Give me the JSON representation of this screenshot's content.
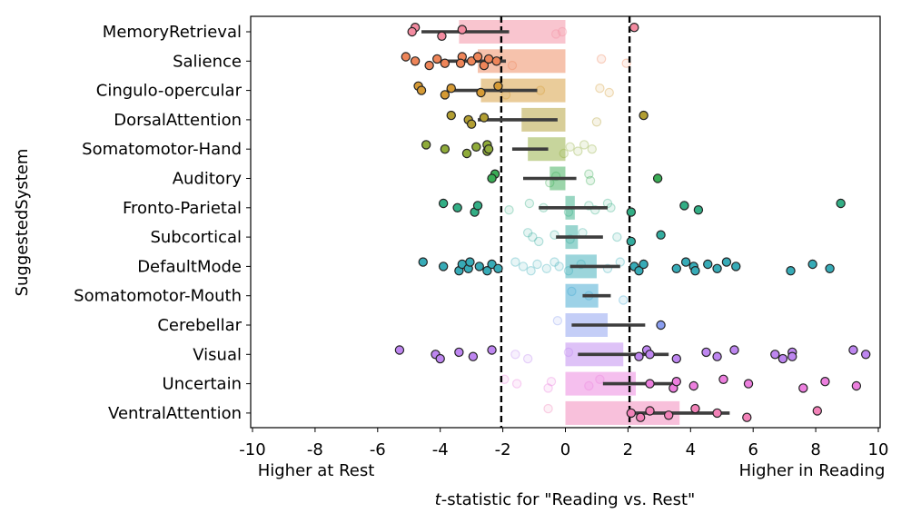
{
  "chart_data": {
    "type": "bar",
    "ylabel": "SuggestedSystem",
    "xlabel_prefix": "t",
    "xlabel_rest": "-statistic for \"Reading vs. Rest\"",
    "left_note": "Higher at Rest",
    "right_note": "Higher in Reading",
    "xlim": [
      -10,
      10
    ],
    "xticks": [
      -10,
      -8,
      -6,
      -4,
      -2,
      0,
      2,
      4,
      6,
      8,
      10
    ],
    "xtick_labels": [
      "-10",
      "-8",
      "-6",
      "-4",
      "-2",
      "0",
      "2",
      "4",
      "6",
      "8",
      "10"
    ],
    "thresholds": [
      -2.05,
      2.05
    ],
    "categories": [
      "MemoryRetrieval",
      "Salience",
      "Cingulo-opercular",
      "DorsalAttention",
      "Somatomotor-Hand",
      "Auditory",
      "Fronto-Parietal",
      "Subcortical",
      "DefaultMode",
      "Somatomotor-Mouth",
      "Cerebellar",
      "Visual",
      "Uncertain",
      "VentralAttention"
    ],
    "colors": [
      "#f38ba0",
      "#ee8559",
      "#d59a35",
      "#b29e32",
      "#8fab3a",
      "#3aac55",
      "#33ae85",
      "#33ac9f",
      "#37abb7",
      "#3ba5d0",
      "#8a9ef0",
      "#be86f0",
      "#ec7fde",
      "#f282b8"
    ],
    "means": [
      -3.4,
      -2.8,
      -2.7,
      -1.4,
      -1.2,
      -0.5,
      0.3,
      0.4,
      1.0,
      1.05,
      1.35,
      1.85,
      2.25,
      3.65
    ],
    "ci": [
      [
        -4.6,
        -1.8
      ],
      [
        -4.2,
        -1.9
      ],
      [
        -3.8,
        -0.9
      ],
      [
        -2.8,
        -0.25
      ],
      [
        -1.7,
        -0.55
      ],
      [
        -1.35,
        0.35
      ],
      [
        -0.85,
        1.35
      ],
      [
        -0.3,
        1.2
      ],
      [
        0.15,
        1.75
      ],
      [
        0.55,
        1.45
      ],
      [
        0.2,
        2.55
      ],
      [
        0.4,
        3.3
      ],
      [
        1.2,
        3.5
      ],
      [
        2.1,
        5.25
      ]
    ],
    "points": [
      [
        -4.8,
        -4.9,
        -3.95,
        -3.3,
        -0.3,
        2.2,
        -0.1
      ],
      [
        -5.1,
        -4.8,
        -4.35,
        -4.1,
        -3.85,
        -3.3,
        -3.0,
        -2.6,
        -2.45,
        -3.35,
        -2.8,
        -2.2,
        -1.7,
        1.15,
        1.95
      ],
      [
        -4.7,
        -4.6,
        -3.85,
        -3.65,
        -2.7,
        -2.15,
        -0.8,
        -1.9,
        1.1,
        1.4
      ],
      [
        -3.65,
        -3.1,
        -3.0,
        -2.6,
        1.0,
        2.5
      ],
      [
        -4.45,
        -3.85,
        -3.15,
        -2.85,
        -2.5,
        -2.5,
        -2.45,
        -0.05,
        0.15,
        0.4,
        0.6,
        0.85
      ],
      [
        -2.25,
        -2.35,
        -0.5,
        -0.3,
        0.8,
        0.75,
        2.95
      ],
      [
        -3.9,
        -3.45,
        -2.9,
        -2.8,
        -1.8,
        -1.15,
        -0.7,
        0.1,
        0.75,
        0.95,
        1.35,
        1.45,
        2.1,
        3.8,
        4.25,
        8.8
      ],
      [
        -1.2,
        -1.05,
        -0.85,
        -0.35,
        0.15,
        0.55,
        1.65,
        2.1,
        3.05
      ],
      [
        -4.55,
        -3.9,
        -3.4,
        -3.3,
        -3.1,
        -3.05,
        -2.75,
        -2.5,
        -2.35,
        -2.15,
        -1.6,
        -1.35,
        -1.1,
        -0.9,
        -0.6,
        -0.35,
        -0.2,
        0.1,
        0.5,
        1.35,
        1.75,
        2.2,
        2.35,
        2.5,
        3.55,
        3.85,
        4.1,
        4.15,
        4.55,
        4.85,
        5.15,
        5.45,
        7.2,
        7.9,
        8.45
      ],
      [
        0.2,
        0.75,
        1.85
      ],
      [
        -0.25,
        3.05
      ],
      [
        -5.3,
        -4.15,
        -4.0,
        -3.4,
        -2.95,
        -2.35,
        -1.6,
        -1.2,
        0.1,
        2.35,
        2.6,
        2.7,
        3.55,
        4.5,
        4.85,
        5.4,
        6.7,
        6.95,
        7.25,
        7.25,
        9.2,
        9.6
      ],
      [
        -1.95,
        -1.55,
        -0.55,
        -0.45,
        0.75,
        1.1,
        2.7,
        3.45,
        3.55,
        4.1,
        5.05,
        5.85,
        7.6,
        8.3,
        9.3
      ],
      [
        -0.55,
        2.1,
        2.4,
        2.7,
        3.3,
        4.15,
        4.85,
        5.8,
        8.05
      ]
    ]
  }
}
